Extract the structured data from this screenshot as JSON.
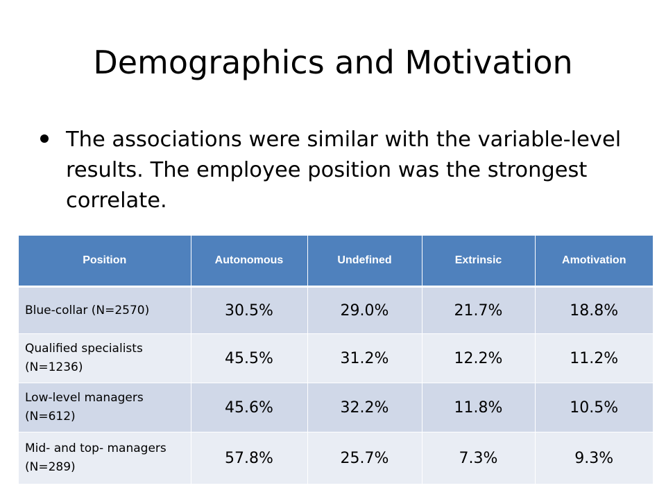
{
  "slide": {
    "title": "Demographics and Motivation",
    "bullet": "The associations were similar with the variable-level results. The employee position was the strongest correlate."
  },
  "table": {
    "headers": [
      "Position",
      "Autonomous",
      "Undefined",
      "Extrinsic",
      "Amotivation"
    ],
    "rows": [
      {
        "position": "Blue-collar (N=2570)",
        "values": [
          "30.5%",
          "29.0%",
          "21.7%",
          "18.8%"
        ]
      },
      {
        "position": "Qualified specialists (N=1236)",
        "values": [
          "45.5%",
          "31.2%",
          "12.2%",
          "11.2%"
        ]
      },
      {
        "position": "Low-level managers (N=612)",
        "values": [
          "45.6%",
          "32.2%",
          "11.8%",
          "10.5%"
        ]
      },
      {
        "position": "Mid- and top- managers (N=289)",
        "values": [
          "57.8%",
          "25.7%",
          "7.3%",
          "9.3%"
        ]
      }
    ]
  },
  "colors": {
    "header_fill": "#4f81bd",
    "row_band_dark": "#d0d8e8",
    "row_band_light": "#e9edf4"
  }
}
